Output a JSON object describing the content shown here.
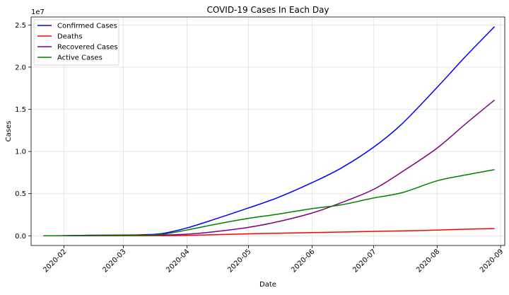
{
  "chart_data": {
    "type": "line",
    "title": "COVID-19 Cases In Each Day",
    "xlabel": "Date",
    "ylabel": "Cases",
    "y_offset_label": "1e7",
    "xlim": [
      "2020-01-16",
      "2020-09-03"
    ],
    "ylim": [
      -1150000,
      25950000
    ],
    "grid": true,
    "legend_position": "upper-left",
    "x_ticks": [
      {
        "date": "2020-02-01",
        "label": "2020-02"
      },
      {
        "date": "2020-03-01",
        "label": "2020-03"
      },
      {
        "date": "2020-04-01",
        "label": "2020-04"
      },
      {
        "date": "2020-05-01",
        "label": "2020-05"
      },
      {
        "date": "2020-06-01",
        "label": "2020-06"
      },
      {
        "date": "2020-07-01",
        "label": "2020-07"
      },
      {
        "date": "2020-08-01",
        "label": "2020-08"
      },
      {
        "date": "2020-09-01",
        "label": "2020-09"
      }
    ],
    "y_ticks": [
      {
        "value": 0,
        "label": "0.0"
      },
      {
        "value": 5000000,
        "label": "0.5"
      },
      {
        "value": 10000000,
        "label": "1.0"
      },
      {
        "value": 15000000,
        "label": "1.5"
      },
      {
        "value": 20000000,
        "label": "2.0"
      },
      {
        "value": 25000000,
        "label": "2.5"
      }
    ],
    "x": [
      "2020-01-22",
      "2020-02-01",
      "2020-02-15",
      "2020-03-01",
      "2020-03-10",
      "2020-03-20",
      "2020-04-01",
      "2020-04-15",
      "2020-05-01",
      "2020-05-15",
      "2020-06-01",
      "2020-06-15",
      "2020-07-01",
      "2020-07-15",
      "2020-08-01",
      "2020-08-15",
      "2020-08-29"
    ],
    "series": [
      {
        "name": "Confirmed Cases",
        "color": "#0000ff",
        "values": [
          555,
          12000,
          70000,
          88000,
          120000,
          270000,
          930000,
          2000000,
          3300000,
          4500000,
          6300000,
          8000000,
          10500000,
          13300000,
          17600000,
          21300000,
          24800000
        ]
      },
      {
        "name": "Deaths",
        "color": "#ff0000",
        "values": [
          17,
          260,
          1500,
          3000,
          4000,
          12000,
          50000,
          130000,
          230000,
          300000,
          380000,
          440000,
          520000,
          580000,
          680000,
          780000,
          850000
        ]
      },
      {
        "name": "Recovered Cases",
        "color": "#800080",
        "values": [
          28,
          300,
          10000,
          40000,
          65000,
          90000,
          190000,
          500000,
          1000000,
          1650000,
          2700000,
          3900000,
          5500000,
          7600000,
          10400000,
          13300000,
          16100000
        ]
      },
      {
        "name": "Active Cases",
        "color": "#008000",
        "values": [
          510,
          11440,
          58500,
          45000,
          51000,
          168000,
          690000,
          1370000,
          2070000,
          2550000,
          3220000,
          3660000,
          4480000,
          5120000,
          6520000,
          7220000,
          7850000
        ]
      }
    ]
  }
}
